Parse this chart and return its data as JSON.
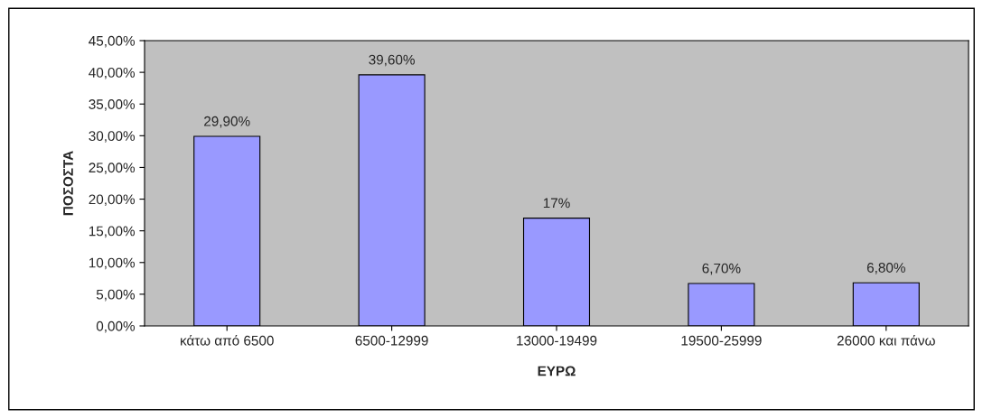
{
  "chart_data": {
    "type": "bar",
    "xlabel": "ΕΥΡΩ",
    "ylabel": "ΠΟΣΟΣΤΑ",
    "categories": [
      "κάτω από 6500",
      "6500-12999",
      "13000-19499",
      "19500-25999",
      "26000 και πάνω"
    ],
    "values": [
      29.9,
      39.6,
      17,
      6.7,
      6.8
    ],
    "value_labels": [
      "29,90%",
      "39,60%",
      "17%",
      "6,70%",
      "6,80%"
    ],
    "color": "#9999ff",
    "ylim": [
      0,
      45
    ],
    "yticks": [
      {
        "value": 0,
        "label": "0,00%"
      },
      {
        "value": 5,
        "label": "5,00%"
      },
      {
        "value": 10,
        "label": "10,00%"
      },
      {
        "value": 15,
        "label": "15,00%"
      },
      {
        "value": 20,
        "label": "20,00%"
      },
      {
        "value": 25,
        "label": "25,00%"
      },
      {
        "value": 30,
        "label": "30,00%"
      },
      {
        "value": 35,
        "label": "35,00%"
      },
      {
        "value": 40,
        "label": "40,00%"
      },
      {
        "value": 45,
        "label": "45,00%"
      }
    ]
  }
}
